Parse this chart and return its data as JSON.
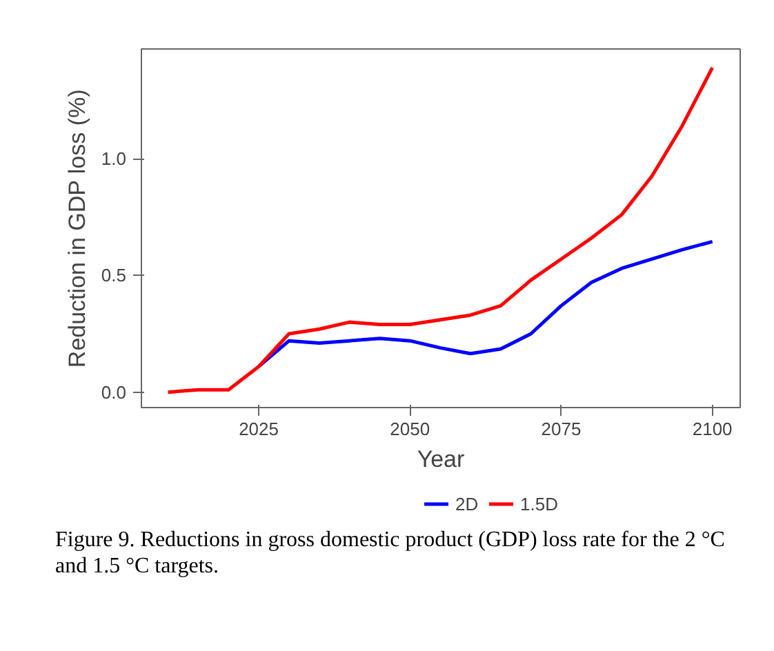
{
  "chart_data": {
    "type": "line",
    "xlabel": "Year",
    "ylabel": "Reduction in GDP loss (%)",
    "x": [
      2010,
      2015,
      2020,
      2025,
      2030,
      2035,
      2040,
      2045,
      2050,
      2055,
      2060,
      2065,
      2070,
      2075,
      2080,
      2085,
      2090,
      2095,
      2100
    ],
    "xlim": [
      2005.6,
      2104.6
    ],
    "ylim": [
      -0.066,
      1.47
    ],
    "xticks": [
      2025,
      2050,
      2075,
      2100
    ],
    "yticks": [
      {
        "value": 0,
        "label": "0.0"
      },
      {
        "value": 0.5,
        "label": "0.5"
      },
      {
        "value": 1,
        "label": "1.0"
      }
    ],
    "series": [
      {
        "name": "2D",
        "color": "#0000ff",
        "values": [
          null,
          null,
          null,
          0.11,
          0.22,
          0.21,
          0.22,
          0.23,
          0.22,
          0.19,
          0.165,
          0.185,
          0.25,
          0.37,
          0.47,
          0.53,
          0.57,
          0.61,
          0.645
        ]
      },
      {
        "name": "1.5D",
        "color": "#ff0000",
        "values": [
          0.0,
          0.01,
          0.01,
          0.11,
          0.25,
          0.27,
          0.3,
          0.29,
          0.29,
          0.31,
          0.33,
          0.37,
          0.48,
          0.57,
          0.66,
          0.76,
          0.925,
          1.14,
          1.39
        ]
      }
    ],
    "grid": false,
    "legend": "bottom",
    "annotations": [
      "Figure 9. Reductions in gross domestic product (GDP) loss rate for the 2 °C and 1.5 °C targets."
    ]
  }
}
